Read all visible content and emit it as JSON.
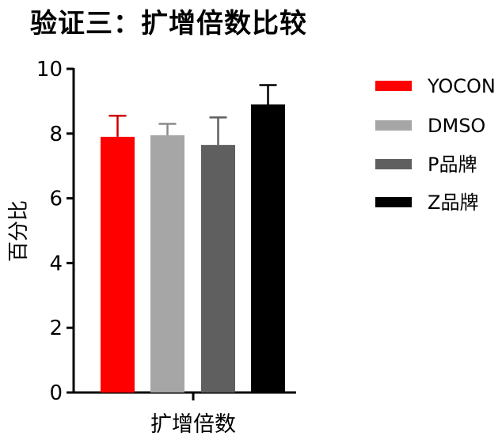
{
  "title": "验证三：扩增倍数比较",
  "chart_data": {
    "type": "bar",
    "title": "验证三：扩增倍数比较",
    "xlabel": "扩增倍数",
    "ylabel": "百分比",
    "ylim": [
      0,
      10
    ],
    "yticks": [
      0,
      2,
      4,
      6,
      8,
      10
    ],
    "categories": [
      "扩增倍数"
    ],
    "series": [
      {
        "name": "YOCON",
        "values": [
          7.9
        ],
        "error": [
          0.65
        ],
        "color": "#ff0000",
        "error_color": "#cc0000"
      },
      {
        "name": "DMSO",
        "values": [
          7.95
        ],
        "error": [
          0.35
        ],
        "color": "#a6a6a7",
        "error_color": "#8a8a8a"
      },
      {
        "name": "P品牌",
        "values": [
          7.65
        ],
        "error": [
          0.85
        ],
        "color": "#5f5f5f",
        "error_color": "#5f5f5f"
      },
      {
        "name": "Z品牌",
        "values": [
          8.9
        ],
        "error": [
          0.6
        ],
        "color": "#000000",
        "error_color": "#000000"
      }
    ],
    "legend_position": "right",
    "grid": false
  }
}
